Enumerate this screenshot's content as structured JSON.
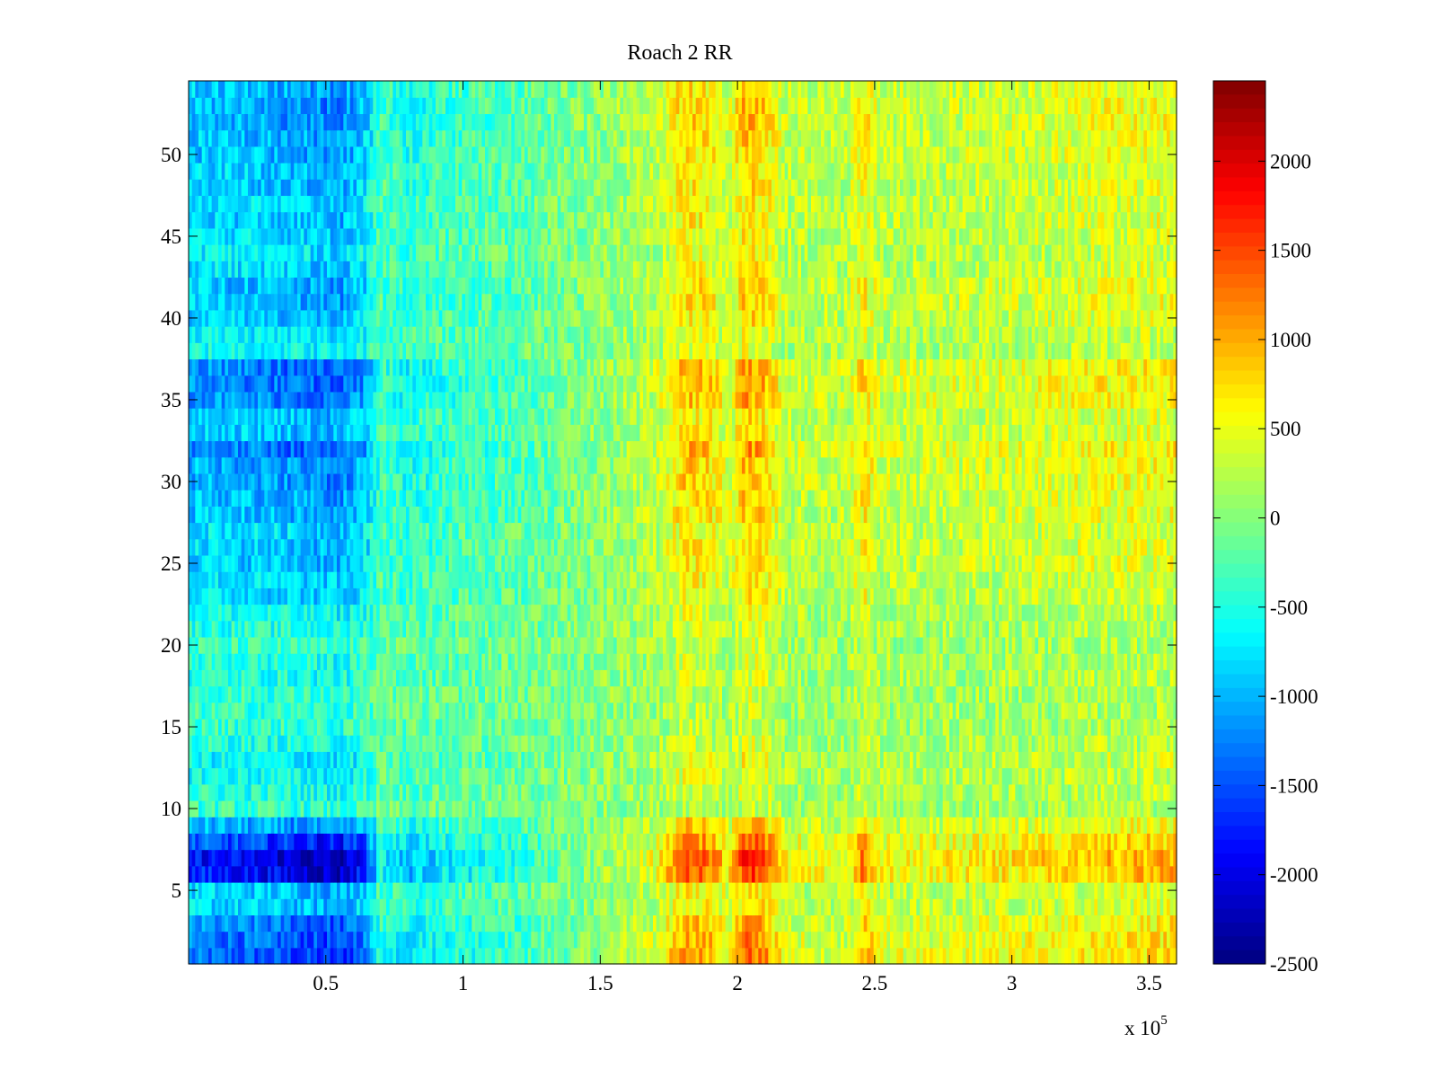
{
  "chart_data": {
    "type": "heatmap",
    "title": "Roach 2 RR",
    "xlabel": "",
    "ylabel": "",
    "x_range": [
      0,
      360000
    ],
    "y_range": [
      0.5,
      54.5
    ],
    "n_rows": 54,
    "x_ticks": [
      50000,
      100000,
      150000,
      200000,
      250000,
      300000,
      350000
    ],
    "x_tick_labels": [
      "0.5",
      "1",
      "1.5",
      "2",
      "2.5",
      "3",
      "3.5"
    ],
    "x_exponent_label": "x 10",
    "x_exponent_power": "5",
    "y_ticks": [
      5,
      10,
      15,
      20,
      25,
      30,
      35,
      40,
      45,
      50
    ],
    "y_tick_labels": [
      "5",
      "10",
      "15",
      "20",
      "25",
      "30",
      "35",
      "40",
      "45",
      "50"
    ],
    "colormap": "jet",
    "color_range": [
      -2500,
      2450
    ],
    "colorbar_ticks": [
      2000,
      1500,
      1000,
      500,
      0,
      -500,
      -1000,
      -1500,
      -2000,
      -2500
    ],
    "colorbar_tick_labels": [
      "2000",
      "1500",
      "1000",
      "500",
      "0",
      "-500",
      "-1000",
      "-1500",
      "-2000",
      "-2500"
    ],
    "column_profile": {
      "x": [
        0,
        30000,
        55000,
        65000,
        70000,
        80000,
        95000,
        120000,
        145000,
        170000,
        181000,
        190000,
        197000,
        203000,
        210000,
        217000,
        240000,
        246000,
        252000,
        270000,
        300000,
        330000,
        360000
      ],
      "values": [
        -900,
        -1000,
        -1150,
        -850,
        -300,
        -500,
        -350,
        -250,
        0,
        250,
        750,
        650,
        350,
        900,
        750,
        300,
        250,
        650,
        300,
        300,
        350,
        450,
        500
      ]
    },
    "row_strength": {
      "rows": [
        1,
        2,
        3,
        4,
        5,
        6,
        7,
        8,
        9,
        10,
        11,
        12,
        13,
        14,
        15,
        16,
        17,
        18,
        19,
        20,
        21,
        22,
        23,
        24,
        25,
        26,
        27,
        28,
        29,
        30,
        31,
        32,
        33,
        34,
        35,
        36,
        37,
        38,
        39,
        40,
        41,
        42,
        43,
        44,
        45,
        46,
        47,
        48,
        49,
        50,
        51,
        52,
        53,
        54
      ],
      "factors": [
        1.5,
        1.4,
        1.3,
        0.9,
        0.9,
        1.9,
        2.0,
        1.6,
        1.1,
        0.4,
        0.5,
        0.6,
        0.7,
        0.5,
        0.4,
        0.4,
        0.4,
        0.5,
        0.5,
        0.4,
        0.5,
        0.6,
        0.8,
        0.8,
        0.9,
        0.9,
        0.8,
        1.0,
        1.0,
        1.1,
        1.1,
        1.3,
        0.9,
        0.9,
        1.2,
        1.3,
        1.3,
        0.6,
        0.7,
        0.9,
        1.0,
        1.0,
        0.8,
        0.7,
        0.8,
        0.9,
        0.8,
        0.9,
        0.9,
        1.0,
        1.0,
        1.1,
        1.1,
        1.0
      ]
    },
    "noise_amplitude": 350
  }
}
